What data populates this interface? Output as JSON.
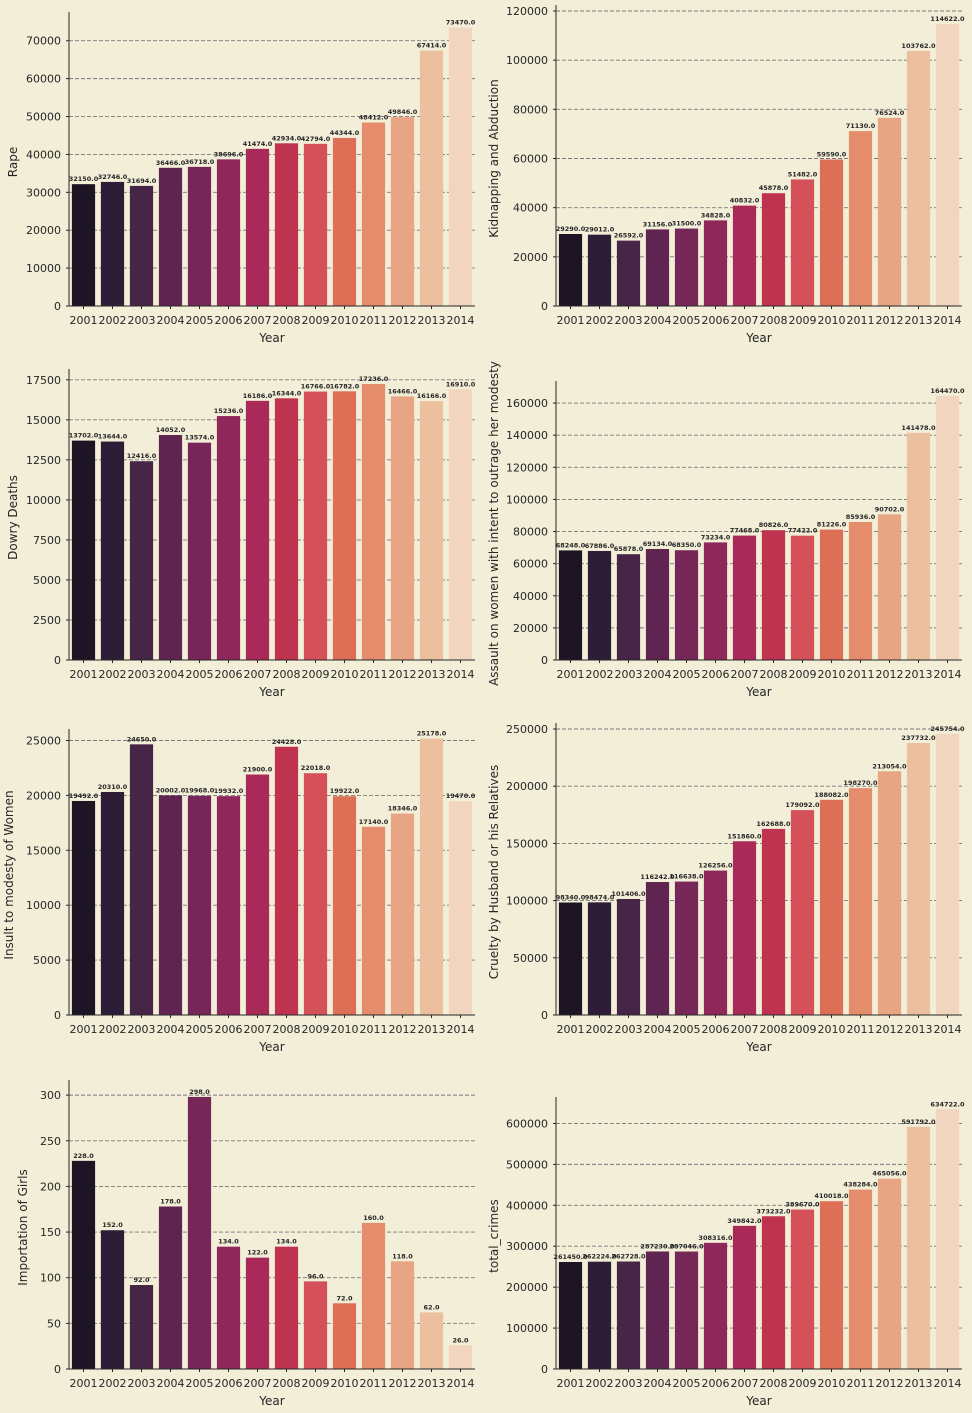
{
  "chart_data": [
    {
      "type": "bar",
      "ylabel": "Rape",
      "xlabel": "Year",
      "categories": [
        "2001",
        "2002",
        "2003",
        "2004",
        "2005",
        "2006",
        "2007",
        "2008",
        "2009",
        "2010",
        "2011",
        "2012",
        "2013",
        "2014"
      ],
      "values": [
        32150,
        32746,
        31694,
        36466,
        36718,
        38696,
        41474,
        42934,
        42794,
        44344,
        48412,
        49846,
        67414,
        73470
      ],
      "ylim": [
        0,
        76000
      ],
      "yticks": [
        0,
        10000,
        20000,
        30000,
        40000,
        50000,
        60000,
        70000
      ],
      "grid": true
    },
    {
      "type": "bar",
      "ylabel": "Kidnapping and Abduction",
      "xlabel": "Year",
      "categories": [
        "2001",
        "2002",
        "2003",
        "2004",
        "2005",
        "2006",
        "2007",
        "2008",
        "2009",
        "2010",
        "2011",
        "2012",
        "2013",
        "2014"
      ],
      "values": [
        29290,
        29012,
        26592,
        31156,
        31500,
        34828,
        40832,
        45878,
        51482,
        59590,
        71130,
        76524,
        103762,
        114622
      ],
      "ylim": [
        0,
        120000
      ],
      "yticks": [
        0,
        20000,
        40000,
        60000,
        80000,
        100000,
        120000
      ],
      "grid": true
    },
    {
      "type": "bar",
      "ylabel": "Dowry Deaths",
      "xlabel": "Year",
      "categories": [
        "2001",
        "2002",
        "2003",
        "2004",
        "2005",
        "2006",
        "2007",
        "2008",
        "2009",
        "2010",
        "2011",
        "2012",
        "2013",
        "2014"
      ],
      "values": [
        13702,
        13644,
        12416,
        14052,
        13574,
        15236,
        16186,
        16344,
        16766,
        16782,
        17236,
        16466,
        16166,
        16910
      ],
      "ylim": [
        0,
        17800
      ],
      "yticks": [
        0,
        2500,
        5000,
        7500,
        10000,
        12500,
        15000,
        17500
      ],
      "grid": true
    },
    {
      "type": "bar",
      "ylabel": "Assault on women with intent to outrage her modesty",
      "xlabel": "Year",
      "categories": [
        "2001",
        "2002",
        "2003",
        "2004",
        "2005",
        "2006",
        "2007",
        "2008",
        "2009",
        "2010",
        "2011",
        "2012",
        "2013",
        "2014"
      ],
      "values": [
        68248,
        67886,
        65878,
        69134,
        68350,
        73234,
        77468,
        80826,
        77422,
        81226,
        85936,
        90702,
        141478,
        164470
      ],
      "ylim": [
        0,
        170000
      ],
      "yticks": [
        0,
        20000,
        40000,
        60000,
        80000,
        100000,
        120000,
        140000,
        160000
      ],
      "grid": true
    },
    {
      "type": "bar",
      "ylabel": "Insult to modesty of Women",
      "xlabel": "Year",
      "categories": [
        "2001",
        "2002",
        "2003",
        "2004",
        "2005",
        "2006",
        "2007",
        "2008",
        "2009",
        "2010",
        "2011",
        "2012",
        "2013",
        "2014"
      ],
      "values": [
        19492,
        20310,
        24650,
        20002,
        19968,
        19932,
        21900,
        24428,
        22018,
        19922,
        17140,
        18346,
        25178,
        19470
      ],
      "ylim": [
        0,
        25500
      ],
      "yticks": [
        0,
        5000,
        10000,
        15000,
        20000,
        25000
      ],
      "grid": true
    },
    {
      "type": "bar",
      "ylabel": "Cruelty by Husband or his Relatives",
      "xlabel": "Year",
      "categories": [
        "2001",
        "2002",
        "2003",
        "2004",
        "2005",
        "2006",
        "2007",
        "2008",
        "2009",
        "2010",
        "2011",
        "2012",
        "2013",
        "2014"
      ],
      "values": [
        98340,
        98474,
        101406,
        116242,
        116638,
        126256,
        151860,
        162688,
        179092,
        188082,
        198270,
        213054,
        237732,
        245754
      ],
      "ylim": [
        0,
        250000
      ],
      "yticks": [
        0,
        50000,
        100000,
        150000,
        200000,
        250000
      ],
      "grid": true
    },
    {
      "type": "bar",
      "ylabel": "Importation of Girls",
      "xlabel": "Year",
      "categories": [
        "2001",
        "2002",
        "2003",
        "2004",
        "2005",
        "2006",
        "2007",
        "2008",
        "2009",
        "2010",
        "2011",
        "2012",
        "2013",
        "2014"
      ],
      "values": [
        228,
        152,
        92,
        178,
        298,
        134,
        122,
        134,
        96,
        72,
        160,
        118,
        62,
        26
      ],
      "ylim": [
        0,
        310
      ],
      "yticks": [
        0,
        50,
        100,
        150,
        200,
        250,
        300
      ],
      "grid": true
    },
    {
      "type": "bar",
      "ylabel": "total_crimes",
      "xlabel": "Year",
      "categories": [
        "2001",
        "2002",
        "2003",
        "2004",
        "2005",
        "2006",
        "2007",
        "2008",
        "2009",
        "2010",
        "2011",
        "2012",
        "2013",
        "2014"
      ],
      "values": [
        261450,
        262224,
        262728,
        287230,
        287046,
        308316,
        349842,
        373232,
        389670,
        410018,
        438284,
        465056,
        591792,
        634722
      ],
      "ylim": [
        0,
        650000
      ],
      "yticks": [
        0,
        100000,
        200000,
        300000,
        400000,
        500000,
        600000
      ],
      "grid": true
    }
  ],
  "colors": [
    "#1d1424",
    "#2e1d37",
    "#472547",
    "#5f2550",
    "#762758",
    "#8f275b",
    "#a92958",
    "#c03350",
    "#d4515a",
    "#de6f57",
    "#e48c6b",
    "#e7a584",
    "#ecbf9e",
    "#f1d5be"
  ],
  "background": "#f2eed8"
}
